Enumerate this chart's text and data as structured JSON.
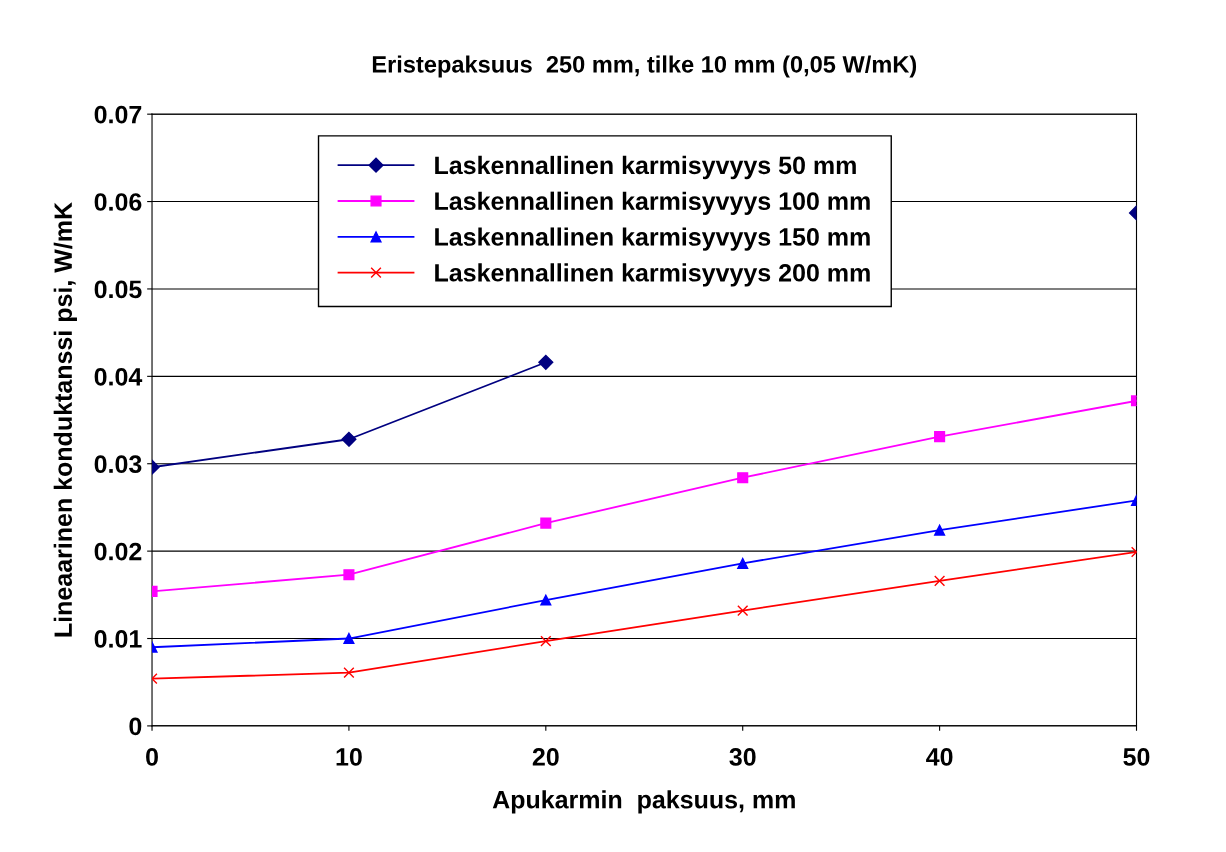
{
  "chart_data": {
    "type": "line",
    "title": "Eristepaksuus  250 mm, tilke 10 mm (0,05 W/mK)",
    "xlabel": "Apukarmin  paksuus, mm",
    "ylabel": "Lineaarinen konduktanssi psi, W/mK",
    "x": [
      0,
      10,
      20,
      30,
      40,
      50
    ],
    "series": [
      {
        "name": "Laskennallinen karmisyvyys 50 mm",
        "color": "#000080",
        "marker": "diamond",
        "values": [
          0.0296,
          0.0328,
          0.0416,
          null,
          null,
          0.0587
        ]
      },
      {
        "name": "Laskennallinen karmisyvyys 100 mm",
        "color": "#ff00ff",
        "marker": "square",
        "values": [
          0.0154,
          0.0173,
          0.0232,
          0.0284,
          0.0331,
          0.0372
        ]
      },
      {
        "name": "Laskennallinen karmisyvyys 150 mm",
        "color": "#0000ff",
        "marker": "triangle",
        "values": [
          0.009,
          0.01,
          0.0144,
          0.0186,
          0.0224,
          0.0258
        ]
      },
      {
        "name": "Laskennallinen karmisyvyys 200 mm",
        "color": "#ff0000",
        "marker": "cross",
        "values": [
          0.0054,
          0.0061,
          0.0097,
          0.0132,
          0.0166,
          0.0199
        ]
      }
    ],
    "xlim": [
      0,
      50
    ],
    "xticks": [
      0,
      10,
      20,
      30,
      40,
      50
    ],
    "ylim": [
      0,
      0.07
    ],
    "yticks": [
      0,
      0.01,
      0.02,
      0.03,
      0.04,
      0.05,
      0.06,
      0.07
    ],
    "grid": "y",
    "legend": "top",
    "line_style": "solid"
  }
}
